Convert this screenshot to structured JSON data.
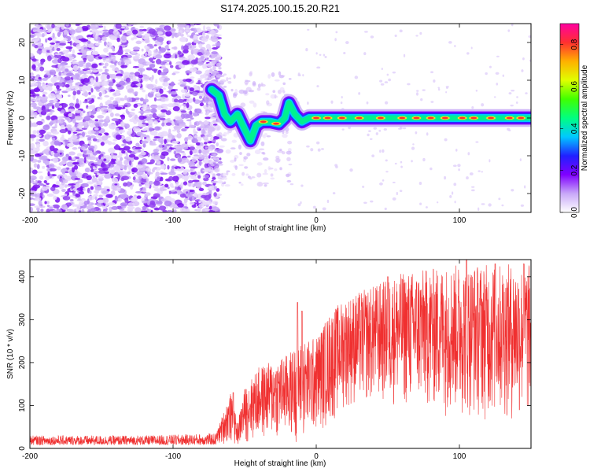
{
  "title": "S174.2025.100.15.20.R21",
  "chart_data": [
    {
      "type": "heatmap",
      "xlabel": "Height of straight line (km)",
      "ylabel": "Frequency (Hz)",
      "xlim": [
        -200,
        150
      ],
      "ylim": [
        -25,
        25
      ],
      "xticks": [
        -200,
        -100,
        0,
        100
      ],
      "yticks": [
        -20,
        -10,
        0,
        10,
        20
      ],
      "colorbar": {
        "label": "Normalized spectral amplitude",
        "range": [
          0,
          0.9
        ],
        "ticks": [
          0.0,
          0.2,
          0.4,
          0.6,
          0.8
        ],
        "colormap": [
          "#ffffff",
          "#c8a8f8",
          "#8000ff",
          "#2020ff",
          "#00c8ff",
          "#00ff80",
          "#40ff00",
          "#e0ff00",
          "#ffb000",
          "#ff3030",
          "#ff00a0"
        ]
      },
      "regions": [
        {
          "name": "noise",
          "x_range": [
            -200,
            -75
          ],
          "freq_range": [
            -25,
            25
          ]
        },
        {
          "name": "signal-trace",
          "points": [
            [
              -73,
              7.5
            ],
            [
              -68,
              6
            ],
            [
              -64,
              1
            ],
            [
              -60,
              -1
            ],
            [
              -55,
              1
            ],
            [
              -50,
              -3
            ],
            [
              -46,
              -6
            ],
            [
              -42,
              -2
            ],
            [
              -38,
              -1
            ],
            [
              -32,
              -1
            ],
            [
              -26,
              -1.5
            ],
            [
              -22,
              0
            ],
            [
              -19,
              4
            ],
            [
              -15,
              1
            ],
            [
              -10,
              -1
            ],
            [
              -5,
              0
            ],
            [
              0,
              0
            ],
            [
              20,
              0
            ],
            [
              50,
              0
            ],
            [
              80,
              0
            ],
            [
              100,
              0
            ],
            [
              120,
              0
            ],
            [
              150,
              0
            ]
          ],
          "freq_halfwidth_hz": 1.3
        }
      ]
    },
    {
      "type": "line",
      "xlabel": "Height of straight line (km)",
      "ylabel": "SNR (10 * v/v)",
      "xlim": [
        -200,
        150
      ],
      "ylim": [
        0,
        440
      ],
      "xticks": [
        -200,
        -100,
        0,
        100
      ],
      "yticks": [
        0,
        100,
        200,
        300,
        400
      ],
      "color": "#f03030",
      "envelope": [
        {
          "x": -200,
          "low": 8,
          "high": 30
        },
        {
          "x": -120,
          "low": 8,
          "high": 30
        },
        {
          "x": -70,
          "low": 8,
          "high": 35
        },
        {
          "x": -60,
          "low": 10,
          "high": 130
        },
        {
          "x": -55,
          "low": 5,
          "high": 60
        },
        {
          "x": -50,
          "low": 10,
          "high": 140
        },
        {
          "x": -40,
          "low": 15,
          "high": 190
        },
        {
          "x": -20,
          "low": 20,
          "high": 220
        },
        {
          "x": -10,
          "low": 10,
          "high": 250
        },
        {
          "x": 0,
          "low": 30,
          "high": 260
        },
        {
          "x": 10,
          "low": 50,
          "high": 320
        },
        {
          "x": 20,
          "low": 90,
          "high": 350
        },
        {
          "x": 40,
          "low": 100,
          "high": 380
        },
        {
          "x": 60,
          "low": 90,
          "high": 410
        },
        {
          "x": 80,
          "low": 80,
          "high": 420
        },
        {
          "x": 100,
          "low": 70,
          "high": 430
        },
        {
          "x": 120,
          "low": 60,
          "high": 430
        },
        {
          "x": 150,
          "low": 50,
          "high": 430
        }
      ],
      "peaks": [
        [
          -13,
          340
        ],
        [
          -10,
          320
        ],
        [
          -58,
          130
        ],
        [
          50,
          400
        ],
        [
          105,
          440
        ],
        [
          125,
          430
        ],
        [
          145,
          430
        ]
      ]
    }
  ]
}
